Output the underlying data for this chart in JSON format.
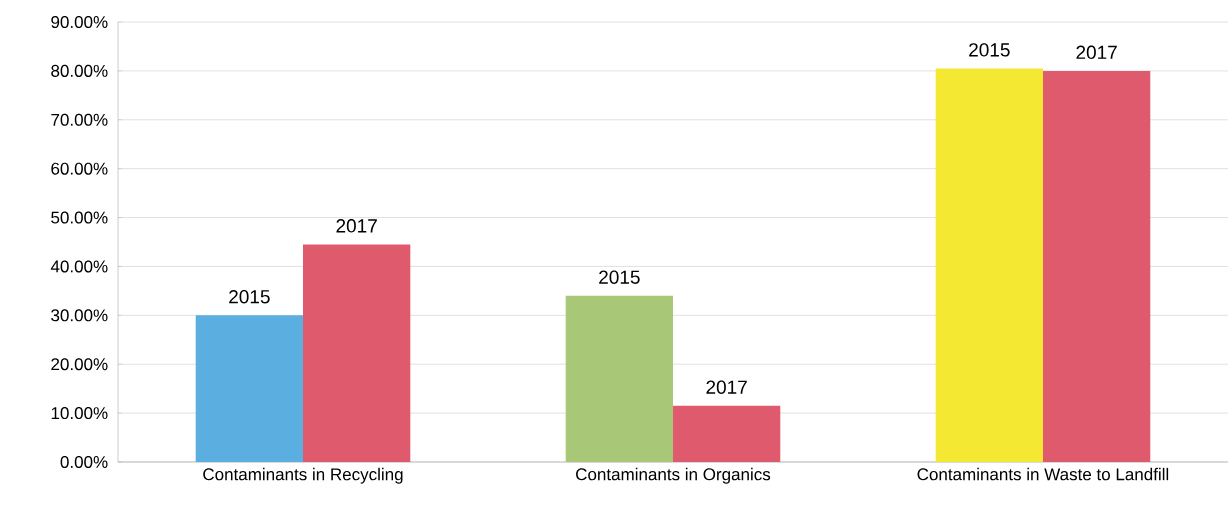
{
  "chart_data": {
    "type": "bar",
    "categories": [
      "Contaminants in Recycling",
      "Contaminants in Organics",
      "Contaminants in Waste to Landfill"
    ],
    "series": [
      {
        "name": "2015",
        "colors": [
          "#5aaee0",
          "#a8c878",
          "#f5e832"
        ],
        "values": [
          30,
          34,
          80.5
        ]
      },
      {
        "name": "2017",
        "color": "#e05a6e",
        "values": [
          44.5,
          11.5,
          80
        ]
      }
    ],
    "ylim": [
      0,
      90
    ],
    "yticks": [
      {
        "value": 0,
        "label": "0.00%"
      },
      {
        "value": 10,
        "label": "10.00%"
      },
      {
        "value": 20,
        "label": "20.00%"
      },
      {
        "value": 30,
        "label": "30.00%"
      },
      {
        "value": 40,
        "label": "40.00%"
      },
      {
        "value": 50,
        "label": "50.00%"
      },
      {
        "value": 60,
        "label": "60.00%"
      },
      {
        "value": 70,
        "label": "70.00%"
      },
      {
        "value": 80,
        "label": "80.00%"
      },
      {
        "value": 90,
        "label": "90.00%"
      }
    ],
    "grid": "y"
  }
}
